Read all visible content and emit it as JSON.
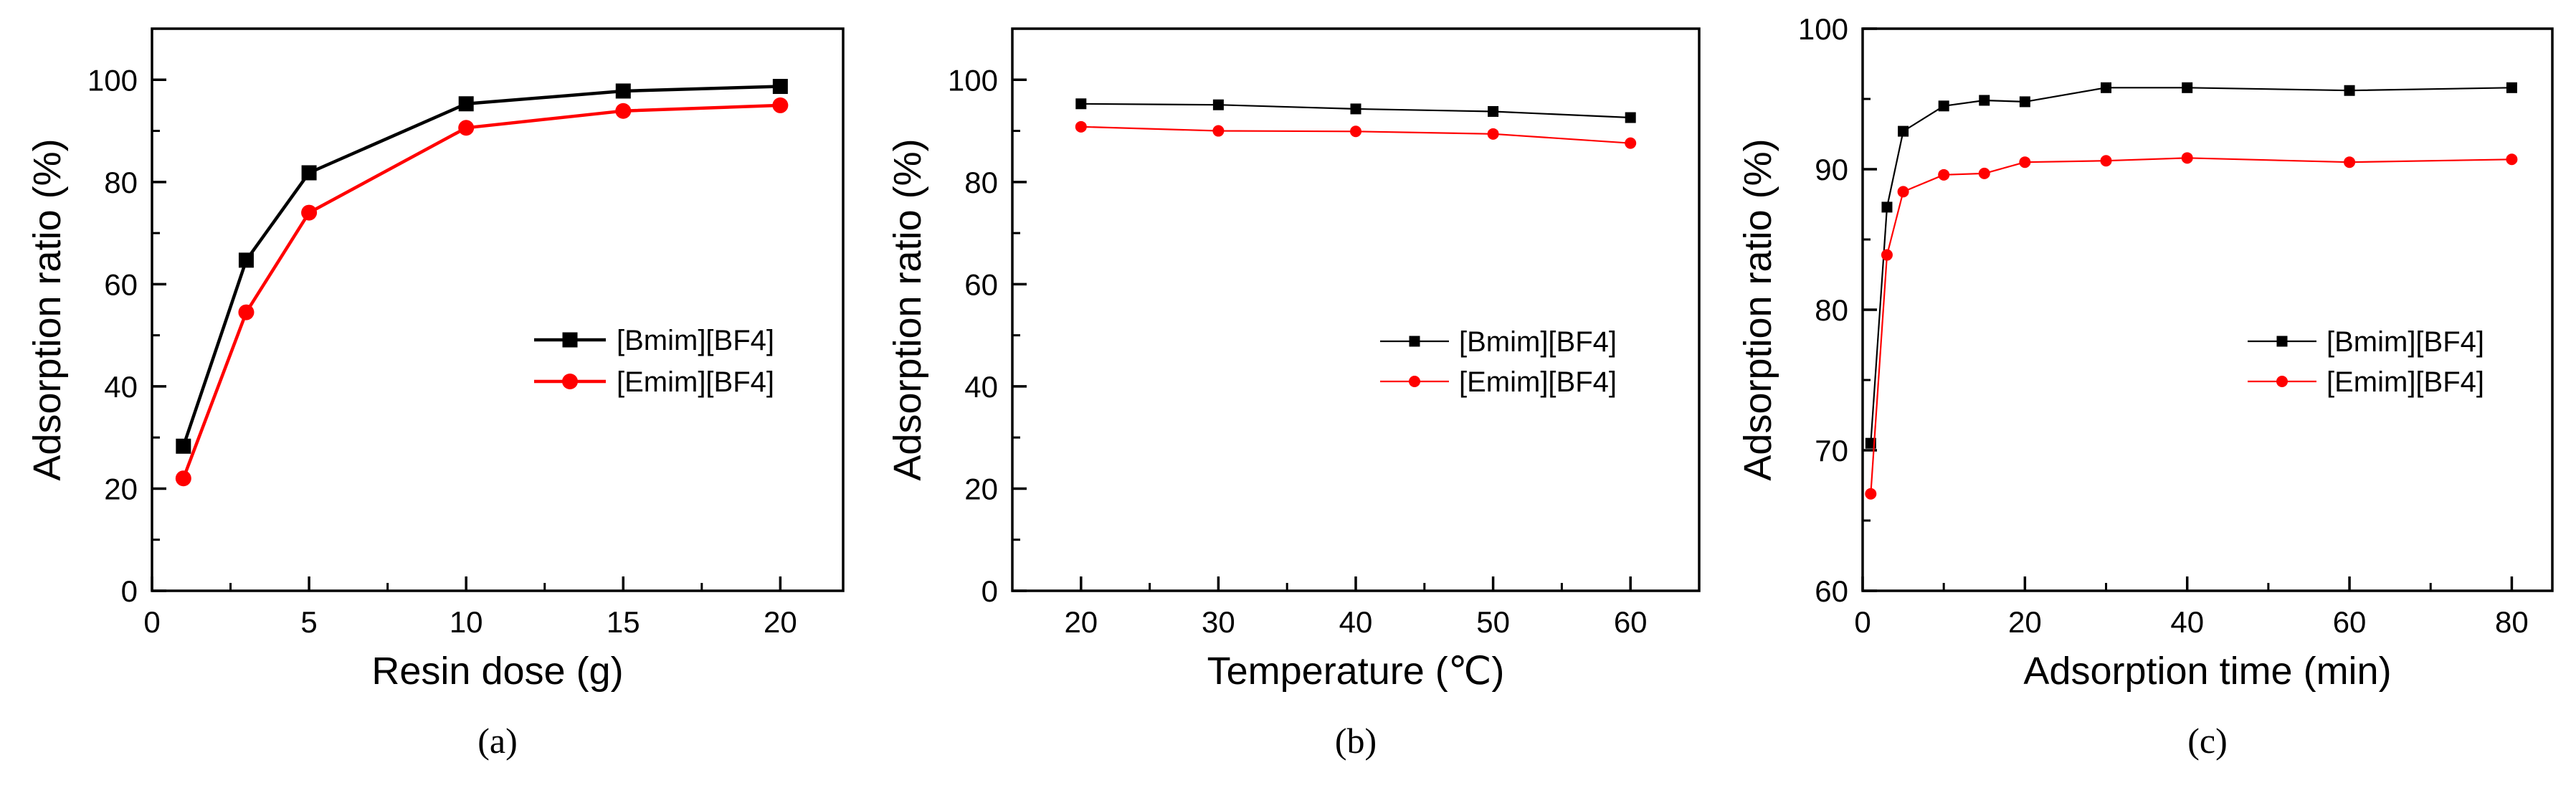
{
  "chart_data": [
    {
      "type": "line",
      "panel_label": "(a)",
      "xlabel": "Resin dose (g)",
      "ylabel": "Adsorption ratio (%)",
      "xlim": [
        0,
        22
      ],
      "ylim": [
        0,
        110
      ],
      "xticks": [
        0,
        5,
        10,
        15,
        20
      ],
      "xtick_labels": [
        "0",
        "5",
        "10",
        "15",
        "20"
      ],
      "yticks": [
        0,
        20,
        40,
        60,
        80,
        100
      ],
      "ytick_labels": [
        "0",
        "20",
        "40",
        "60",
        "80",
        "100"
      ],
      "legend_position": "right",
      "series": [
        {
          "name": "[Bmim][BF4]",
          "color": "#000000",
          "marker": "square",
          "x": [
            1,
            3,
            5,
            10,
            15,
            20
          ],
          "values": [
            28.3,
            64.7,
            81.8,
            95.3,
            97.8,
            98.7
          ]
        },
        {
          "name": "[Emim][BF4]",
          "color": "#ff0000",
          "marker": "circle",
          "x": [
            1,
            3,
            5,
            10,
            15,
            20
          ],
          "values": [
            22.0,
            54.5,
            74.0,
            90.6,
            93.9,
            95.0
          ]
        }
      ]
    },
    {
      "type": "line",
      "panel_label": "(b)",
      "xlabel": "Temperature (℃)",
      "ylabel": "Adsorption ratio (%)",
      "xlim": [
        15,
        65
      ],
      "ylim": [
        0,
        110
      ],
      "xticks": [
        20,
        30,
        40,
        50,
        60
      ],
      "xtick_labels": [
        "20",
        "30",
        "40",
        "50",
        "60"
      ],
      "yticks": [
        0,
        20,
        40,
        60,
        80,
        100
      ],
      "ytick_labels": [
        "0",
        "20",
        "40",
        "60",
        "80",
        "100"
      ],
      "legend_position": "right",
      "series": [
        {
          "name": "[Bmim][BF4]",
          "color": "#000000",
          "marker": "square",
          "x": [
            20,
            30,
            40,
            50,
            60
          ],
          "values": [
            95.3,
            95.1,
            94.3,
            93.8,
            92.6
          ]
        },
        {
          "name": "[Emim][BF4]",
          "color": "#ff0000",
          "marker": "circle",
          "x": [
            20,
            30,
            40,
            50,
            60
          ],
          "values": [
            90.8,
            90.0,
            89.9,
            89.4,
            87.6
          ]
        }
      ]
    },
    {
      "type": "line",
      "panel_label": "(c)",
      "xlabel": "Adsorption time (min)",
      "ylabel": "Adsorption ratio (%)",
      "xlim": [
        0,
        85
      ],
      "ylim": [
        60,
        100
      ],
      "xticks": [
        0,
        20,
        40,
        60,
        80
      ],
      "xtick_labels": [
        "0",
        "20",
        "40",
        "60",
        "80"
      ],
      "yticks": [
        60,
        70,
        80,
        90,
        100
      ],
      "ytick_labels": [
        "60",
        "70",
        "80",
        "90",
        "100"
      ],
      "legend_position": "right",
      "series": [
        {
          "name": "[Bmim][BF4]",
          "color": "#000000",
          "marker": "square",
          "x": [
            1,
            3,
            5,
            10,
            15,
            20,
            30,
            40,
            60,
            80
          ],
          "values": [
            70.5,
            87.3,
            92.7,
            94.5,
            94.9,
            94.8,
            95.8,
            95.8,
            95.6,
            95.8
          ]
        },
        {
          "name": "[Emim][BF4]",
          "color": "#ff0000",
          "marker": "circle",
          "x": [
            1,
            3,
            5,
            10,
            15,
            20,
            30,
            40,
            60,
            80
          ],
          "values": [
            66.9,
            83.9,
            88.4,
            89.6,
            89.7,
            90.5,
            90.6,
            90.8,
            90.5,
            90.7
          ]
        }
      ]
    }
  ]
}
